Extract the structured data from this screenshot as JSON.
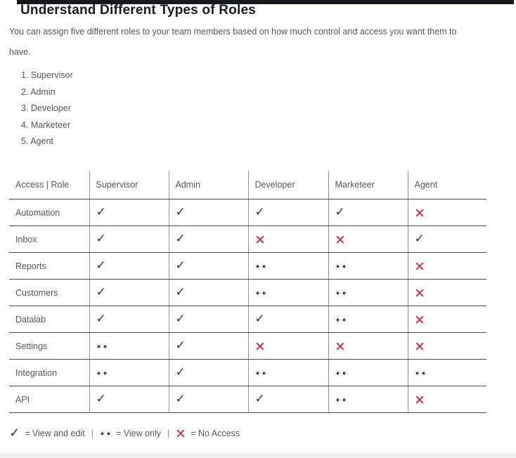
{
  "page": {
    "title": "Understand Different Types of Roles",
    "description": "You can assign five different roles to your team members based on how much control and access you want them to have.",
    "roles_list": [
      "Supervisor",
      "Admin",
      "Developer",
      "Marketeer",
      "Agent"
    ]
  },
  "table": {
    "headers": [
      "Access | Role",
      "Supervisor",
      "Admin",
      "Developer",
      "Marketeer",
      "Agent"
    ],
    "rows": [
      {
        "label": "Automation",
        "cells": [
          "edit",
          "edit",
          "edit",
          "edit",
          "none"
        ]
      },
      {
        "label": "Inbox",
        "cells": [
          "edit",
          "edit",
          "none",
          "none",
          "edit"
        ]
      },
      {
        "label": "Reports",
        "cells": [
          "edit",
          "edit",
          "view",
          "view",
          "none"
        ]
      },
      {
        "label": "Customers",
        "cells": [
          "edit",
          "edit",
          "view",
          "view",
          "none"
        ]
      },
      {
        "label": "Datalab",
        "cells": [
          "edit",
          "edit",
          "edit",
          "view",
          "none"
        ]
      },
      {
        "label": "Settings",
        "cells": [
          "view",
          "edit",
          "none",
          "none",
          "none"
        ]
      },
      {
        "label": "Integration",
        "cells": [
          "view",
          "edit",
          "view",
          "view",
          "view"
        ]
      },
      {
        "label": "API",
        "cells": [
          "edit",
          "edit",
          "edit",
          "view",
          "none"
        ]
      }
    ]
  },
  "legend": {
    "separator": "|",
    "items": [
      {
        "icon": "edit",
        "label": "= View and edit"
      },
      {
        "icon": "view",
        "label": "= View only"
      },
      {
        "icon": "none",
        "label": "= No Access"
      }
    ]
  },
  "symbols": {
    "check": "✓"
  },
  "colors": {
    "accent_red": "#c9364f",
    "check_dark": "#2f3237",
    "rule_dark": "#46494e",
    "rule_light": "#8f9296",
    "top_bar": "#17191d"
  }
}
